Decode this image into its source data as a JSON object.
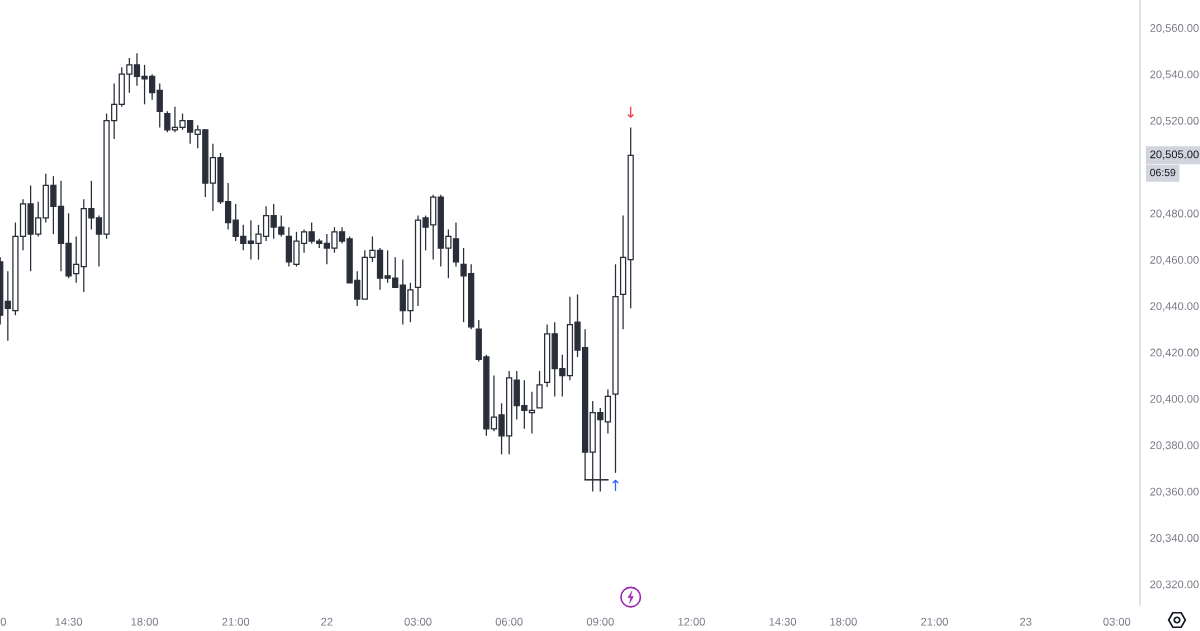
{
  "chart_data": {
    "type": "candlestick",
    "color": "#2a2e39",
    "categories": [
      "0",
      null,
      null,
      null,
      null,
      null,
      null,
      null,
      null,
      "14:30",
      null,
      null,
      null,
      null,
      null,
      null,
      null,
      null,
      null,
      "18:00",
      null,
      null,
      null,
      null,
      null,
      null,
      null,
      null,
      null,
      null,
      null,
      "21:00",
      null,
      null,
      null,
      null,
      null,
      null,
      null,
      null,
      null,
      null,
      null,
      "22",
      null,
      null,
      null,
      null,
      null,
      null,
      null,
      null,
      null,
      null,
      null,
      "03:00",
      null,
      null,
      null,
      null,
      null,
      null,
      null,
      null,
      null,
      null,
      null,
      "06:00",
      null,
      null,
      null,
      null,
      null,
      null,
      null,
      null,
      null,
      null,
      null,
      "09:00",
      null,
      null,
      null,
      null,
      null,
      null,
      null,
      null,
      null,
      null,
      null,
      "12:00",
      null,
      null,
      null,
      null,
      null,
      null,
      null,
      null,
      null,
      null,
      null,
      "14:30",
      null,
      null,
      null,
      null,
      null,
      null,
      null,
      "18:00",
      null,
      null,
      null,
      null,
      null,
      null,
      null,
      null,
      null,
      null,
      null,
      "21:00",
      null,
      null,
      null,
      null,
      null,
      null,
      null,
      null,
      null,
      null,
      null,
      "23",
      null,
      null,
      null,
      null,
      null,
      null,
      null,
      null,
      null,
      null,
      null,
      "03:00",
      null,
      null
    ],
    "ohlc": [
      [
        20459,
        20461,
        20432,
        20436
      ],
      [
        20442,
        20455,
        20425,
        20439
      ],
      [
        20438,
        20476,
        20436,
        20470
      ],
      [
        20470,
        20486,
        20464,
        20484
      ],
      [
        20484,
        20492,
        20455,
        20471
      ],
      [
        20471,
        20485,
        20470,
        20478
      ],
      [
        20478,
        20497,
        20476,
        20492
      ],
      [
        20492,
        20496,
        20471,
        20483
      ],
      [
        20483,
        20494,
        20455,
        20467
      ],
      [
        20467,
        20480,
        20452,
        20453
      ],
      [
        20454,
        20470,
        20450,
        20458
      ],
      [
        20457,
        20486,
        20446,
        20482
      ],
      [
        20482,
        20494,
        20473,
        20478
      ],
      [
        20478,
        20479,
        20457,
        20471
      ],
      [
        20471,
        20523,
        20469,
        20520
      ],
      [
        20520,
        20536,
        20512,
        20527
      ],
      [
        20527,
        20543,
        20526,
        20540
      ],
      [
        20540,
        20547,
        20532,
        20544
      ],
      [
        20544,
        20549,
        20535,
        20539
      ],
      [
        20539,
        20544,
        20527,
        20538
      ],
      [
        20539,
        20540,
        20529,
        20532
      ],
      [
        20533,
        20536,
        20517,
        20524
      ],
      [
        20523,
        20524,
        20515,
        20516
      ],
      [
        20516,
        20526,
        20515,
        20517
      ],
      [
        20517,
        20523,
        20516,
        20520
      ],
      [
        20520,
        20520,
        20510,
        20515
      ],
      [
        20514,
        20518,
        20508,
        20516
      ],
      [
        20516,
        20516,
        20487,
        20493
      ],
      [
        20493,
        20510,
        20481,
        20504
      ],
      [
        20504,
        20506,
        20484,
        20485
      ],
      [
        20485,
        20493,
        20473,
        20476
      ],
      [
        20477,
        20484,
        20468,
        20470
      ],
      [
        20470,
        20475,
        20464,
        20467
      ],
      [
        20468,
        20477,
        20460,
        20467
      ],
      [
        20467,
        20475,
        20460,
        20471
      ],
      [
        20470,
        20483,
        20468,
        20479
      ],
      [
        20479,
        20484,
        20469,
        20474
      ],
      [
        20474,
        20479,
        20470,
        20471
      ],
      [
        20470,
        20474,
        20457,
        20459
      ],
      [
        20458,
        20472,
        20457,
        20468
      ],
      [
        20467,
        20473,
        20463,
        20472
      ],
      [
        20472,
        20476,
        20467,
        20468
      ],
      [
        20468,
        20469,
        20465,
        20467
      ],
      [
        20467,
        20471,
        20458,
        20465
      ],
      [
        20465,
        20474,
        20463,
        20472
      ],
      [
        20472,
        20474,
        20467,
        20468
      ],
      [
        20469,
        20470,
        20450,
        20450
      ],
      [
        20451,
        20455,
        20440,
        20443
      ],
      [
        20443,
        20464,
        20443,
        20461
      ],
      [
        20461,
        20470,
        20459,
        20464
      ],
      [
        20464,
        20465,
        20447,
        20452
      ],
      [
        20453,
        20464,
        20450,
        20452
      ],
      [
        20452,
        20461,
        20448,
        20448
      ],
      [
        20449,
        20460,
        20432,
        20438
      ],
      [
        20438,
        20450,
        20433,
        20447
      ],
      [
        20448,
        20479,
        20440,
        20477
      ],
      [
        20478,
        20479,
        20464,
        20474
      ],
      [
        20475,
        20488,
        20460,
        20487
      ],
      [
        20487,
        20488,
        20457,
        20465
      ],
      [
        20465,
        20473,
        20452,
        20470
      ],
      [
        20469,
        20476,
        20457,
        20459
      ],
      [
        20458,
        20465,
        20433,
        20453
      ],
      [
        20454,
        20458,
        20430,
        20431
      ],
      [
        20430,
        20434,
        20416,
        20417
      ],
      [
        20418,
        20419,
        20384,
        20387
      ],
      [
        20387,
        20410,
        20386,
        20392
      ],
      [
        20393,
        20398,
        20376,
        20384
      ],
      [
        20384,
        20412,
        20376,
        20409
      ],
      [
        20408,
        20412,
        20391,
        20397
      ],
      [
        20397,
        20408,
        20387,
        20395
      ],
      [
        20394,
        20403,
        20385,
        20395
      ],
      [
        20396,
        20412,
        20396,
        20406
      ],
      [
        20407,
        20432,
        20405,
        20428
      ],
      [
        20428,
        20433,
        20401,
        20413
      ],
      [
        20413,
        20419,
        20401,
        20410
      ],
      [
        20410,
        20444,
        20408,
        20432
      ],
      [
        20433,
        20445,
        20418,
        20421
      ],
      [
        20422,
        20430,
        20365,
        20377
      ],
      [
        20377,
        20399,
        20360,
        20394
      ],
      [
        20394,
        20396,
        20360,
        20391
      ],
      [
        20390,
        20404,
        20385,
        20401
      ],
      [
        20402,
        20458,
        20368,
        20444
      ],
      [
        20445,
        20479,
        20430,
        20461
      ],
      [
        20460,
        20517,
        20439,
        20505
      ],
      null,
      null,
      null,
      null,
      null,
      null,
      null,
      null,
      null,
      null,
      null,
      null,
      null,
      null,
      null,
      null,
      null,
      null,
      null,
      null,
      null,
      null,
      null,
      null,
      null,
      null,
      null,
      null,
      null,
      null,
      null,
      null,
      null,
      null,
      null,
      null,
      null,
      null,
      null,
      null,
      null,
      null,
      null,
      null,
      null,
      null,
      null,
      null,
      null,
      null,
      null,
      null,
      null,
      null,
      null,
      null,
      null,
      null,
      null,
      null,
      null,
      null,
      null,
      null,
      null,
      null
    ],
    "series": [
      {
        "type": "line",
        "color": "#131722",
        "values": [
          null,
          null,
          null,
          null,
          null,
          null,
          null,
          null,
          null,
          null,
          null,
          null,
          null,
          null,
          null,
          null,
          null,
          null,
          null,
          null,
          null,
          null,
          null,
          null,
          null,
          null,
          null,
          null,
          null,
          null,
          null,
          null,
          null,
          null,
          null,
          null,
          null,
          null,
          null,
          null,
          null,
          null,
          null,
          null,
          null,
          null,
          null,
          null,
          null,
          null,
          null,
          null,
          null,
          null,
          null,
          null,
          null,
          null,
          null,
          null,
          null,
          null,
          null,
          null,
          null,
          null,
          null,
          null,
          null,
          null,
          null,
          null,
          null,
          null,
          null,
          null,
          null,
          20365,
          20365,
          20365,
          20365,
          null,
          null,
          null,
          null,
          null,
          null,
          null,
          null,
          null,
          null,
          null,
          null,
          null,
          null,
          null,
          null,
          null,
          null,
          null,
          null,
          null,
          null,
          null,
          null,
          null,
          null,
          null,
          null,
          null,
          null,
          null,
          null,
          null,
          null,
          null,
          null,
          null,
          null,
          null,
          null,
          null,
          null,
          null,
          null,
          null,
          null,
          null,
          null,
          null,
          null,
          null,
          null,
          null,
          null,
          null,
          null,
          null,
          null,
          null,
          null,
          null,
          null,
          null,
          null,
          null,
          null,
          null,
          null,
          null
        ]
      }
    ],
    "ylim": [
      20311,
      20572
    ],
    "yticks": [
      {
        "value": 20320,
        "label": "20,320.00"
      },
      {
        "value": 20340,
        "label": "20,340.00"
      },
      {
        "value": 20360,
        "label": "20,360.00"
      },
      {
        "value": 20380,
        "label": "20,380.00"
      },
      {
        "value": 20400,
        "label": "20,400.00"
      },
      {
        "value": 20420,
        "label": "20,420.00"
      },
      {
        "value": 20440,
        "label": "20,440.00"
      },
      {
        "value": 20460,
        "label": "20,460.00"
      },
      {
        "value": 20480,
        "label": "20,480.00"
      },
      {
        "value": 20520,
        "label": "20,520.00"
      },
      {
        "value": 20540,
        "label": "20,540.00"
      },
      {
        "value": 20560,
        "label": "20,560.00"
      }
    ],
    "annotations": [
      "20,505.00",
      "06:59",
      {
        "text": "↓",
        "y": 20517
      },
      {
        "text": "↑",
        "y": 20368
      }
    ]
  }
}
